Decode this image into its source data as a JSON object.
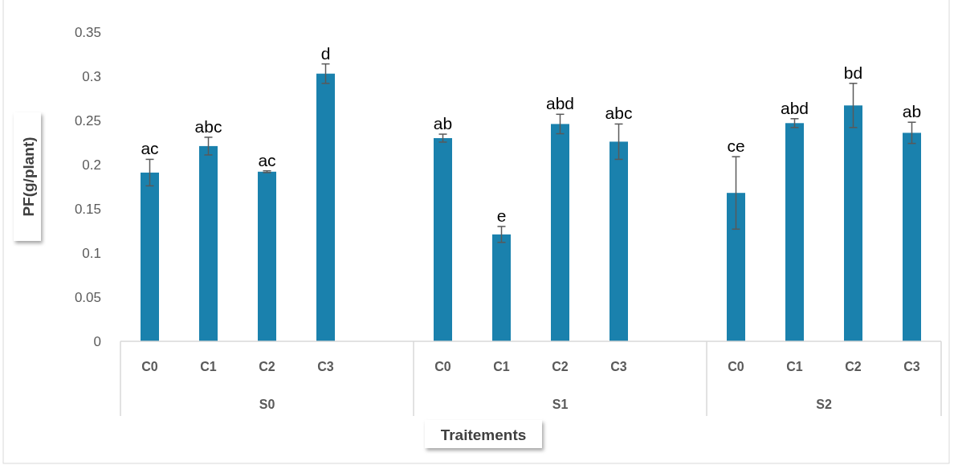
{
  "chart_data": {
    "type": "bar",
    "xlabel": "Traitements",
    "ylabel": "PF(g/plant)",
    "categories": [
      "C0",
      "C1",
      "C2",
      "C3",
      null,
      "C0",
      "C1",
      "C2",
      "C3",
      null,
      "C0",
      "C1",
      "C2",
      "C3"
    ],
    "values": [
      0.191,
      0.221,
      0.192,
      0.303,
      null,
      0.23,
      0.121,
      0.246,
      0.226,
      null,
      0.168,
      0.247,
      0.267,
      0.236
    ],
    "errors": [
      0.015,
      0.01,
      0.001,
      0.011,
      null,
      0.0045,
      0.009,
      0.011,
      0.02,
      null,
      0.041,
      0.005,
      0.025,
      0.012
    ],
    "value_labels": [
      "ac",
      "abc",
      "ac",
      "d",
      null,
      "ab",
      "e",
      "abd",
      "abc",
      null,
      "ce",
      "abd",
      "bd",
      "ab"
    ],
    "color": "#1a81ad",
    "annotations": [
      "S0",
      "S1",
      "S2"
    ],
    "ylim": [
      0,
      0.35
    ],
    "yticks": [
      0,
      0.05,
      0.1,
      0.15,
      0.2,
      0.25,
      0.3,
      0.35
    ],
    "grid": false
  }
}
